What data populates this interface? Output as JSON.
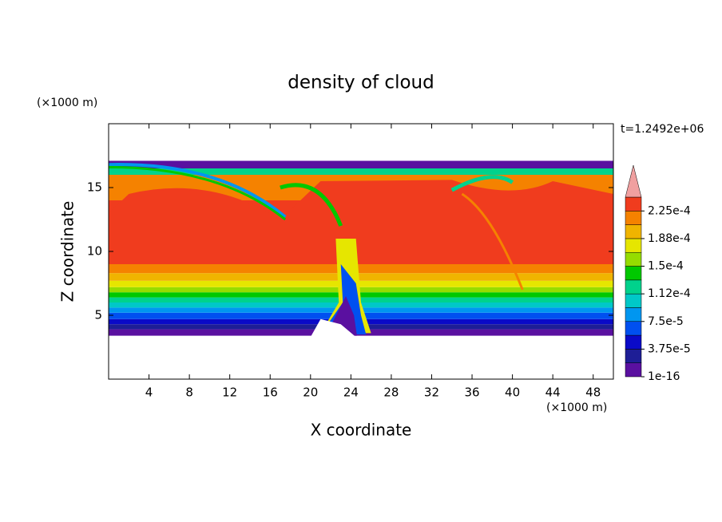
{
  "chart_data": {
    "type": "contour",
    "title": "density of cloud",
    "x_label": "X coordinate",
    "y_label": "Z coordinate",
    "x_unit": "(×1000 m)",
    "y_unit": "(×1000 m)",
    "time_label": "t=1.2492e+06",
    "xlim": [
      0,
      50
    ],
    "xticks": [
      4,
      8,
      12,
      16,
      20,
      24,
      28,
      32,
      36,
      40,
      44,
      48
    ],
    "ylim": [
      0,
      20
    ],
    "yticks": [
      5,
      10,
      15
    ],
    "colorbar": {
      "colors": [
        "#5a10a0",
        "#1e1e96",
        "#0a0ac8",
        "#0050f0",
        "#0096f0",
        "#00c8c8",
        "#00d28c",
        "#00c800",
        "#96dc00",
        "#e6e600",
        "#f0b400",
        "#f58200",
        "#f03c1e"
      ],
      "over_color": "#f0a0a0",
      "clim": [
        1e-16,
        0.00024375
      ],
      "ticks": [
        {
          "value": 1e-16,
          "label": "1e-16"
        },
        {
          "value": 3.75e-05,
          "label": "3.75e-5"
        },
        {
          "value": 7.5e-05,
          "label": "7.5e-5"
        },
        {
          "value": 0.0001125,
          "label": "1.12e-4"
        },
        {
          "value": 0.00015,
          "label": "1.5e-4"
        },
        {
          "value": 0.0001875,
          "label": "1.88e-4"
        },
        {
          "value": 0.000225,
          "label": "2.25e-4"
        }
      ]
    }
  }
}
